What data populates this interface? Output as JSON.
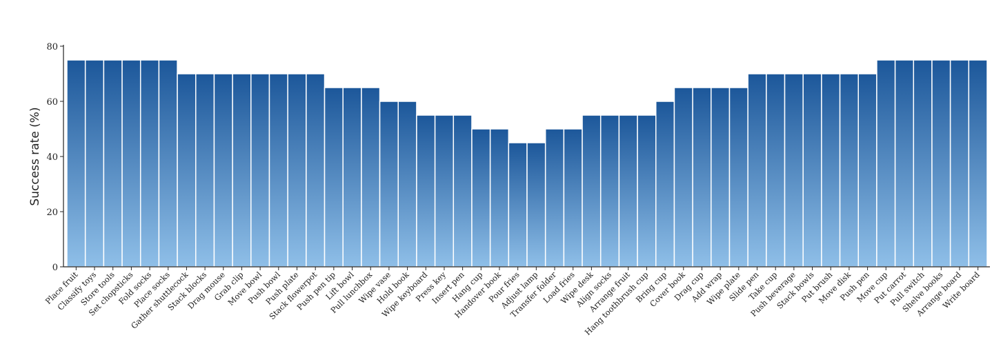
{
  "chart_data": {
    "type": "bar",
    "y_label": "Success rate (%)",
    "categories": [
      "Place fruit",
      "Classify toys",
      "Store tools",
      "Set chopsticks",
      "Fold socks",
      "Place socks",
      "Gather shuttlecock",
      "Stack blocks",
      "Drag mouse",
      "Grab clip",
      "Move bowl",
      "Push bowl",
      "Push plate",
      "Stack flowerpot",
      "Push pen tip",
      "Lift bowl",
      "Pull lunchbox",
      "Wipe vase",
      "Hold book",
      "Wipe keyboard",
      "Press key",
      "Insert pen",
      "Hang cup",
      "Handover book",
      "Pour fries",
      "Adjust lamp",
      "Transfer folder",
      "Load fries",
      "Wipe desk",
      "Align socks",
      "Arrange fruit",
      "Hang toothbrush cup",
      "Bring cup",
      "Cover book",
      "Drag cup",
      "Add wrap",
      "Wipe plate",
      "Slide pen",
      "Take cup",
      "Push beverage",
      "Stack bowls",
      "Put brush",
      "Move disk",
      "Push pen",
      "Move cup",
      "Put carrot",
      "Pull switch",
      "Shelve books",
      "Arrange board",
      "Write board"
    ],
    "values": [
      75,
      75,
      75,
      75,
      75,
      75,
      70,
      70,
      70,
      70,
      70,
      70,
      70,
      70,
      65,
      65,
      65,
      60,
      60,
      55,
      55,
      55,
      50,
      50,
      45,
      45,
      50,
      50,
      55,
      55,
      55,
      55,
      60,
      65,
      65,
      65,
      65,
      70,
      70,
      70,
      70,
      70,
      70,
      70,
      75,
      75,
      75,
      75,
      75,
      75
    ],
    "gradient": [
      "#1c579a",
      "#8fbfe8"
    ],
    "ylim": [
      0,
      80
    ],
    "yticks": [
      0,
      20,
      40,
      60,
      80
    ],
    "grid": false
  }
}
